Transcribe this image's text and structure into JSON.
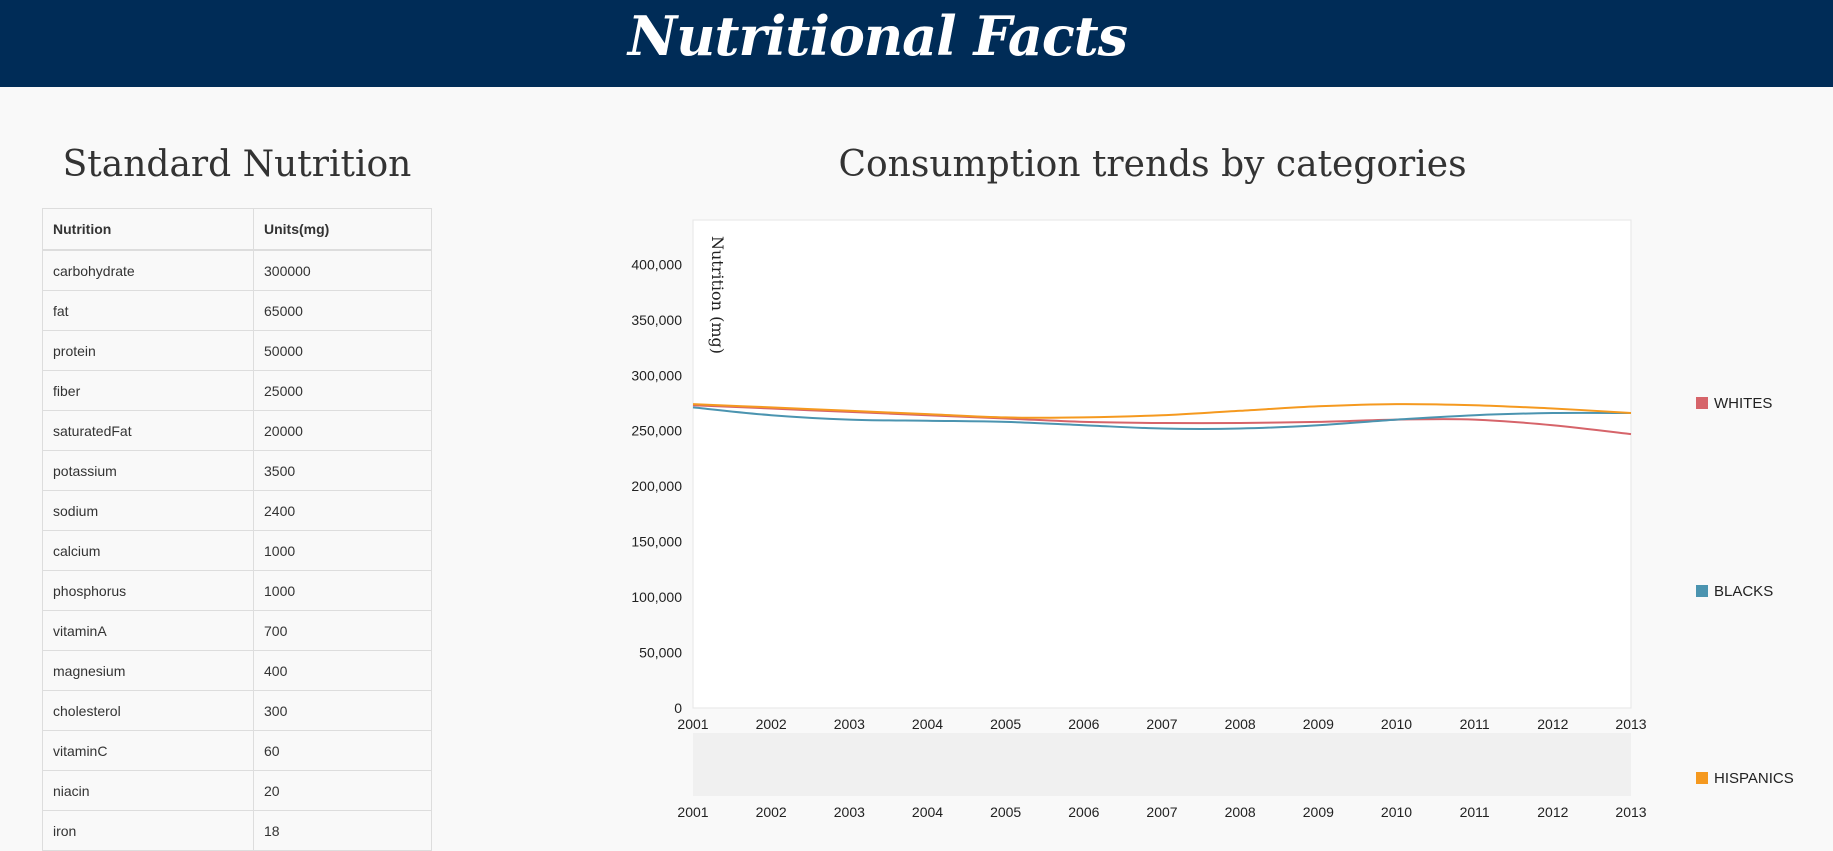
{
  "header": {
    "title": "Nutritional Facts"
  },
  "standard": {
    "title": "Standard Nutrition",
    "columns": [
      "Nutrition",
      "Units(mg)"
    ],
    "rows": [
      [
        "carbohydrate",
        "300000"
      ],
      [
        "fat",
        "65000"
      ],
      [
        "protein",
        "50000"
      ],
      [
        "fiber",
        "25000"
      ],
      [
        "saturatedFat",
        "20000"
      ],
      [
        "potassium",
        "3500"
      ],
      [
        "sodium",
        "2400"
      ],
      [
        "calcium",
        "1000"
      ],
      [
        "phosphorus",
        "1000"
      ],
      [
        "vitaminA",
        "700"
      ],
      [
        "magnesium",
        "400"
      ],
      [
        "cholesterol",
        "300"
      ],
      [
        "vitaminC",
        "60"
      ],
      [
        "niacin",
        "20"
      ],
      [
        "iron",
        "18"
      ]
    ]
  },
  "trends": {
    "title": "Consumption trends by categories"
  },
  "chart_data": {
    "type": "line",
    "ylabel": "Nutrition (mg)",
    "x": [
      2001,
      2002,
      2003,
      2004,
      2005,
      2006,
      2007,
      2008,
      2009,
      2010,
      2011,
      2012,
      2013
    ],
    "xlim": [
      2001,
      2013
    ],
    "ylim": [
      0,
      440000
    ],
    "yticks": [
      0,
      50000,
      100000,
      150000,
      200000,
      250000,
      300000,
      350000,
      400000
    ],
    "ytick_labels": [
      "0",
      "50,000",
      "100,000",
      "150,000",
      "200,000",
      "250,000",
      "300,000",
      "350,000",
      "400,000"
    ],
    "xtick_labels": [
      "2001",
      "2002",
      "2003",
      "2004",
      "2005",
      "2006",
      "2007",
      "2008",
      "2009",
      "2010",
      "2011",
      "2012",
      "2013"
    ],
    "series": [
      {
        "name": "WHITES",
        "color": "#d6646a",
        "values": [
          273000,
          270000,
          267000,
          264000,
          261000,
          258000,
          257000,
          257000,
          258000,
          260000,
          260000,
          255000,
          247000
        ]
      },
      {
        "name": "BLACKS",
        "color": "#4b94b0",
        "values": [
          271000,
          264000,
          260000,
          259000,
          258000,
          255000,
          252000,
          252000,
          255000,
          260000,
          264000,
          266000,
          266000
        ]
      },
      {
        "name": "HISPANICS",
        "color": "#f5991f",
        "values": [
          274000,
          271000,
          268000,
          265000,
          262000,
          262000,
          264000,
          268000,
          272000,
          274000,
          273000,
          270000,
          266000
        ]
      }
    ],
    "legend_position": "right",
    "grid": false,
    "overview_brush": true
  }
}
